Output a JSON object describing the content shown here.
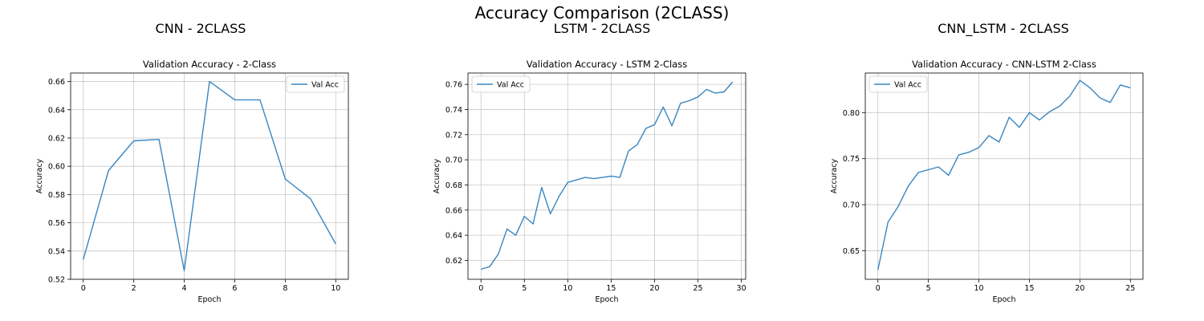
{
  "figure": {
    "title": "Accuracy Comparison (2CLASS)"
  },
  "panels": [
    {
      "title": "CNN - 2CLASS"
    },
    {
      "title": "LSTM - 2CLASS"
    },
    {
      "title": "CNN_LSTM - 2CLASS"
    }
  ],
  "colors": {
    "line": "#3a86c0",
    "grid": "#c8c8c8",
    "axis": "#000000"
  },
  "chart_data": [
    {
      "type": "line",
      "title": "Validation Accuracy - 2-Class",
      "xlabel": "Epoch",
      "ylabel": "Accuracy",
      "xlim": [
        -0.5,
        10.5
      ],
      "ylim": [
        0.52,
        0.666
      ],
      "xticks": [
        0,
        2,
        4,
        6,
        8,
        10
      ],
      "yticks": [
        0.52,
        0.54,
        0.56,
        0.58,
        0.6,
        0.62,
        0.64,
        0.66
      ],
      "ytick_decimals": 2,
      "grid": true,
      "legend": "upper right",
      "series": [
        {
          "name": "Val Acc",
          "x": [
            0,
            1,
            2,
            3,
            4,
            5,
            6,
            7,
            8,
            9,
            10
          ],
          "y": [
            0.534,
            0.597,
            0.618,
            0.619,
            0.526,
            0.66,
            0.647,
            0.647,
            0.591,
            0.577,
            0.545
          ]
        }
      ]
    },
    {
      "type": "line",
      "title": "Validation Accuracy - LSTM 2-Class",
      "xlabel": "Epoch",
      "ylabel": "Accuracy",
      "xlim": [
        -1.5,
        30.5
      ],
      "ylim": [
        0.605,
        0.769
      ],
      "xticks": [
        0,
        5,
        10,
        15,
        20,
        25,
        30
      ],
      "yticks": [
        0.62,
        0.64,
        0.66,
        0.68,
        0.7,
        0.72,
        0.74,
        0.76
      ],
      "ytick_decimals": 2,
      "grid": true,
      "legend": "upper left",
      "series": [
        {
          "name": "Val Acc",
          "x": [
            0,
            1,
            2,
            3,
            4,
            5,
            6,
            7,
            8,
            9,
            10,
            11,
            12,
            13,
            14,
            15,
            16,
            17,
            18,
            19,
            20,
            21,
            22,
            23,
            24,
            25,
            26,
            27,
            28,
            29
          ],
          "y": [
            0.613,
            0.615,
            0.625,
            0.645,
            0.64,
            0.655,
            0.649,
            0.678,
            0.657,
            0.671,
            0.682,
            0.684,
            0.686,
            0.685,
            0.686,
            0.687,
            0.686,
            0.707,
            0.712,
            0.725,
            0.728,
            0.742,
            0.727,
            0.745,
            0.747,
            0.75,
            0.756,
            0.753,
            0.754,
            0.762
          ]
        }
      ]
    },
    {
      "type": "line",
      "title": "Validation Accuracy - CNN-LSTM 2-Class",
      "xlabel": "Epoch",
      "ylabel": "Accuracy",
      "xlim": [
        -1.25,
        26.25
      ],
      "ylim": [
        0.619,
        0.843
      ],
      "xticks": [
        0,
        5,
        10,
        15,
        20,
        25
      ],
      "yticks": [
        0.65,
        0.7,
        0.75,
        0.8
      ],
      "ytick_decimals": 2,
      "grid": true,
      "legend": "upper left",
      "series": [
        {
          "name": "Val Acc",
          "x": [
            0,
            1,
            2,
            3,
            4,
            5,
            6,
            7,
            8,
            9,
            10,
            11,
            12,
            13,
            14,
            15,
            16,
            17,
            18,
            19,
            20,
            21,
            22,
            23,
            24,
            25
          ],
          "y": [
            0.629,
            0.681,
            0.698,
            0.72,
            0.735,
            0.738,
            0.741,
            0.732,
            0.754,
            0.757,
            0.762,
            0.775,
            0.768,
            0.795,
            0.784,
            0.8,
            0.792,
            0.801,
            0.807,
            0.818,
            0.835,
            0.827,
            0.816,
            0.811,
            0.83,
            0.827
          ]
        }
      ]
    }
  ]
}
